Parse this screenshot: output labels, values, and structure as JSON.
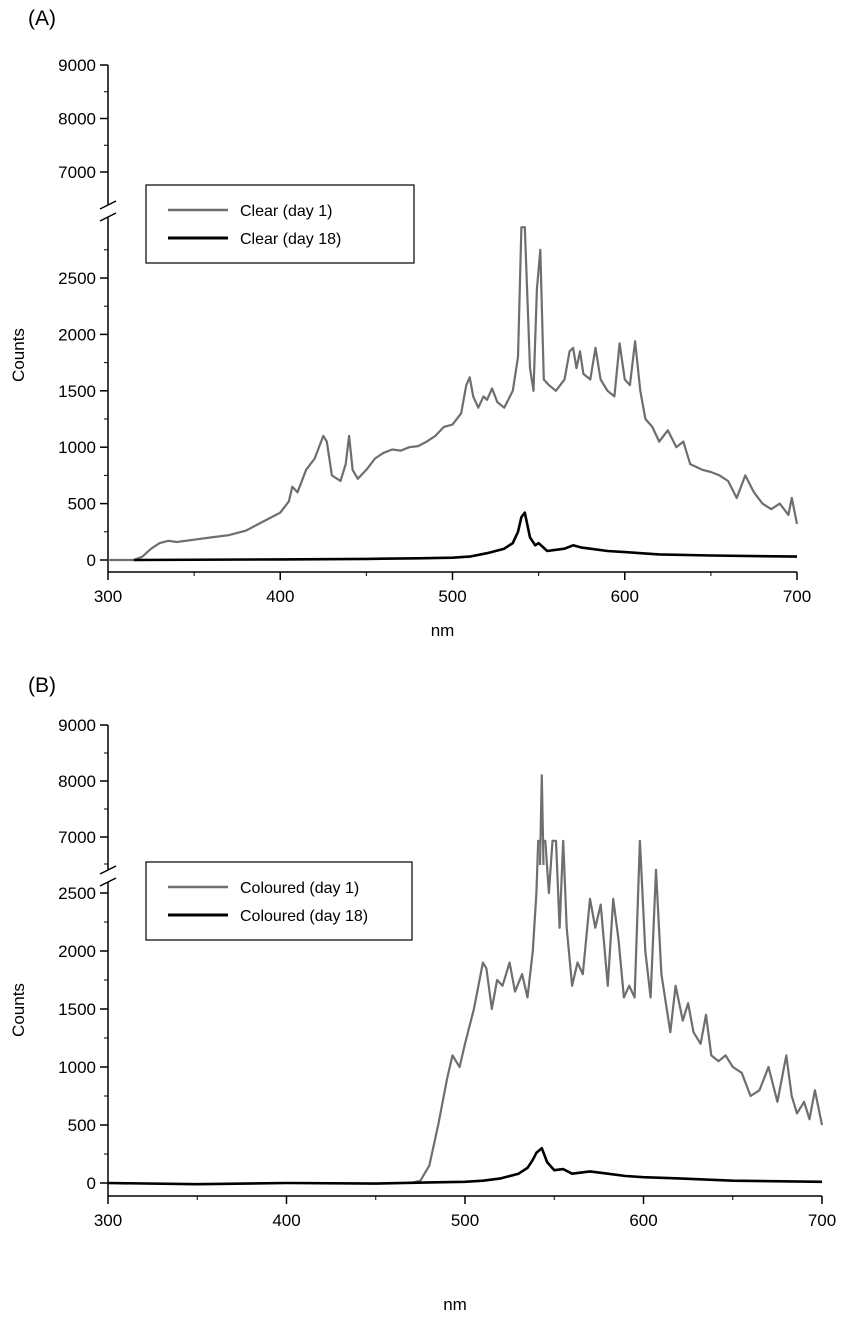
{
  "chart_data": [
    {
      "type": "line",
      "panel_label": "(A)",
      "xlabel": "nm",
      "ylabel": "Counts",
      "xlim": [
        300,
        700
      ],
      "x_ticks": [
        300,
        400,
        500,
        600,
        700
      ],
      "y_ticks_lower": [
        0,
        500,
        1000,
        1500,
        2000,
        2500
      ],
      "y_ticks_upper": [
        7000,
        8000,
        9000
      ],
      "ylim_lower": [
        -50,
        3000
      ],
      "ylim_upper": [
        6500,
        9000
      ],
      "broken_y_axis": true,
      "legend_position": "upper-left",
      "grid": false,
      "colors": {
        "day1": "#6e6e6e",
        "day18": "#000000"
      },
      "series": [
        {
          "name": "Clear (day 1)",
          "x": [
            300,
            315,
            320,
            325,
            330,
            335,
            340,
            350,
            360,
            370,
            380,
            390,
            400,
            405,
            407,
            410,
            415,
            420,
            425,
            427,
            430,
            435,
            438,
            440,
            442,
            445,
            450,
            455,
            460,
            465,
            470,
            475,
            480,
            485,
            490,
            495,
            500,
            505,
            508,
            510,
            512,
            515,
            518,
            520,
            523,
            526,
            530,
            535,
            538,
            540,
            541,
            542,
            545,
            547,
            549,
            551,
            553,
            556,
            560,
            565,
            568,
            570,
            572,
            574,
            576,
            580,
            583,
            586,
            590,
            594,
            597,
            600,
            603,
            606,
            609,
            612,
            616,
            620,
            625,
            630,
            634,
            638,
            645,
            650,
            655,
            660,
            665,
            670,
            675,
            680,
            685,
            690,
            695,
            697,
            700
          ],
          "y": [
            0,
            0,
            30,
            100,
            150,
            170,
            160,
            180,
            200,
            220,
            260,
            340,
            420,
            520,
            650,
            600,
            800,
            900,
            1100,
            1050,
            750,
            700,
            850,
            1100,
            800,
            720,
            800,
            900,
            950,
            980,
            970,
            1000,
            1010,
            1050,
            1100,
            1180,
            1200,
            1300,
            1550,
            1620,
            1450,
            1350,
            1450,
            1420,
            1520,
            1400,
            1350,
            1500,
            1800,
            2950,
            2950,
            2950,
            1700,
            1500,
            2400,
            2750,
            1600,
            1550,
            1500,
            1600,
            1850,
            1880,
            1700,
            1850,
            1650,
            1600,
            1880,
            1600,
            1500,
            1450,
            1920,
            1600,
            1550,
            1940,
            1500,
            1250,
            1180,
            1050,
            1150,
            1000,
            1050,
            850,
            800,
            780,
            750,
            700,
            550,
            750,
            600,
            500,
            450,
            500,
            400,
            550,
            320
          ]
        },
        {
          "name": "Clear (day 18)",
          "x": [
            315,
            400,
            450,
            480,
            500,
            510,
            520,
            530,
            535,
            538,
            540,
            542,
            545,
            548,
            550,
            555,
            560,
            565,
            570,
            575,
            580,
            590,
            600,
            620,
            650,
            700
          ],
          "y": [
            0,
            5,
            10,
            15,
            20,
            30,
            60,
            100,
            150,
            250,
            380,
            420,
            200,
            130,
            150,
            80,
            90,
            100,
            130,
            110,
            100,
            80,
            70,
            50,
            40,
            30
          ]
        }
      ],
      "legend": [
        "Clear (day 1)",
        "Clear (day 18)"
      ]
    },
    {
      "type": "line",
      "panel_label": "(B)",
      "xlabel": "nm",
      "ylabel": "Counts",
      "xlim": [
        300,
        700
      ],
      "x_ticks": [
        300,
        400,
        500,
        600,
        700
      ],
      "y_ticks_lower": [
        0,
        500,
        1000,
        1500,
        2000,
        2500
      ],
      "y_ticks_upper": [
        7000,
        8000,
        9000
      ],
      "ylim_lower": [
        -50,
        3000
      ],
      "ylim_upper": [
        6500,
        9000
      ],
      "broken_y_axis": true,
      "legend_position": "upper-left",
      "grid": false,
      "colors": {
        "day1": "#6e6e6e",
        "day18": "#000000"
      },
      "series": [
        {
          "name": "Coloured (day 1)",
          "x": [
            470,
            475,
            480,
            485,
            490,
            493,
            497,
            500,
            505,
            510,
            512,
            515,
            518,
            521,
            525,
            528,
            532,
            535,
            538,
            540,
            541,
            543,
            545,
            547,
            549,
            551,
            553,
            555,
            557,
            560,
            563,
            566,
            570,
            573,
            576,
            580,
            583,
            586,
            589,
            592,
            595,
            598,
            601,
            604,
            607,
            610,
            615,
            618,
            622,
            625,
            628,
            632,
            635,
            638,
            642,
            646,
            650,
            655,
            660,
            665,
            670,
            675,
            680,
            683,
            686,
            690,
            693,
            696,
            700
          ],
          "y": [
            0,
            20,
            150,
            500,
            900,
            1100,
            1000,
            1200,
            1500,
            1900,
            1850,
            1500,
            1750,
            1700,
            1900,
            1650,
            1800,
            1600,
            2000,
            2500,
            2950,
            8100,
            2950,
            2500,
            2950,
            2950,
            2200,
            2950,
            2200,
            1700,
            1900,
            1800,
            2450,
            2200,
            2400,
            1700,
            2450,
            2100,
            1600,
            1700,
            1600,
            2950,
            2000,
            1600,
            2700,
            1800,
            1300,
            1700,
            1400,
            1550,
            1300,
            1200,
            1450,
            1100,
            1050,
            1100,
            1000,
            950,
            750,
            800,
            1000,
            700,
            1100,
            750,
            600,
            700,
            550,
            800,
            500
          ]
        },
        {
          "name": "Coloured (day 18)",
          "x": [
            300,
            350,
            400,
            450,
            480,
            500,
            510,
            520,
            530,
            535,
            538,
            540,
            543,
            546,
            550,
            555,
            560,
            565,
            570,
            575,
            580,
            590,
            600,
            620,
            650,
            700
          ],
          "y": [
            0,
            -10,
            0,
            -5,
            5,
            10,
            20,
            40,
            80,
            130,
            200,
            260,
            300,
            180,
            110,
            120,
            80,
            90,
            100,
            90,
            80,
            60,
            50,
            40,
            20,
            10
          ]
        }
      ],
      "legend": [
        "Coloured (day 1)",
        "Coloured (day 18)"
      ]
    }
  ]
}
